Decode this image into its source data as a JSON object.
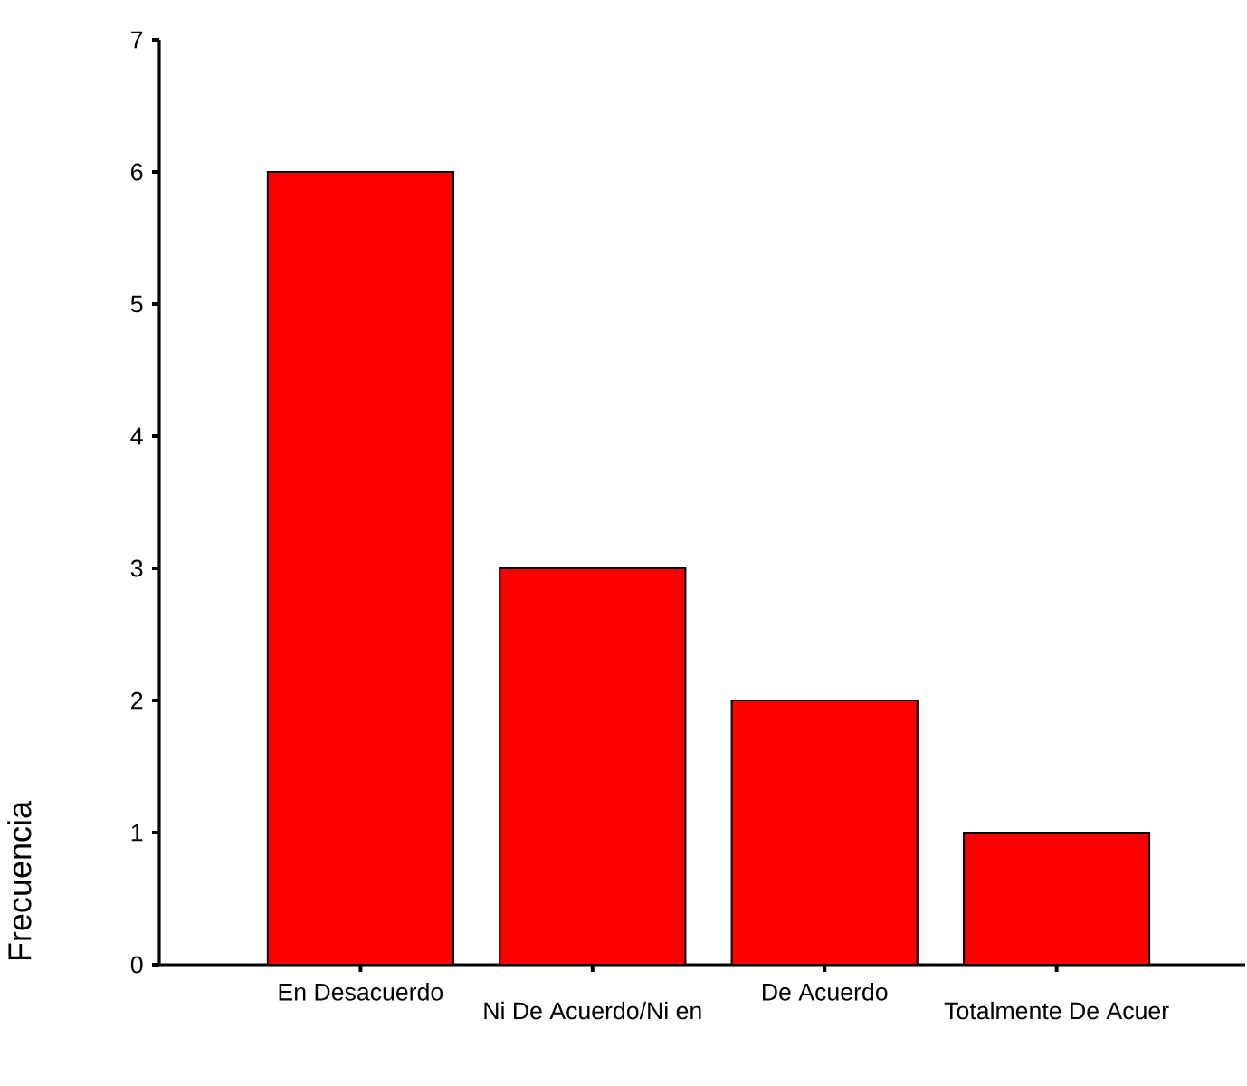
{
  "chart_data": {
    "type": "bar",
    "ylabel": "Frecuencia",
    "categories": [
      "En Desacuerdo",
      "Ni  De Acuerdo/Ni en",
      "De Acuerdo",
      "Totalmente  De Acuer"
    ],
    "values": [
      6,
      3,
      2,
      1
    ],
    "color": "#ff0000",
    "ylim": [
      0,
      7
    ],
    "yticks": [
      0,
      1,
      2,
      3,
      4,
      5,
      6,
      7
    ]
  }
}
